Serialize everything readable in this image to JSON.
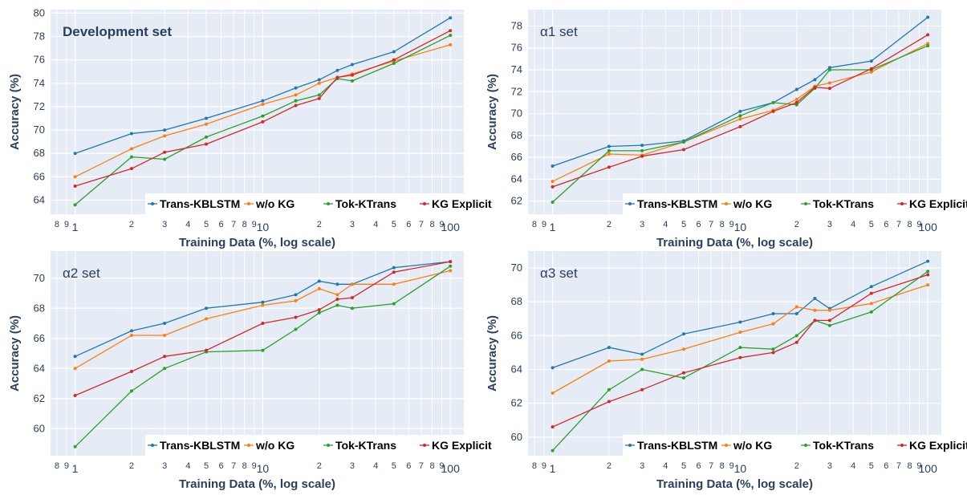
{
  "shared": {
    "xlabel": "Training Data (%, log scale)",
    "ylabel": "Accuracy (%)",
    "legend_placement": "bottom-right",
    "grid": true,
    "colors": {
      "plot_bg": "#e5ecf6",
      "grid": "#ffffff",
      "Trans-KBLSTM": "#1f77b4",
      "w/o KG": "#ff7f0e",
      "Tok-KTrans": "#2ca02c",
      "KG Explicit": "#d62728"
    },
    "x_tick_labels": [
      {
        "v": 0.8,
        "t": "8",
        "big": false
      },
      {
        "v": 0.9,
        "t": "9",
        "big": false
      },
      {
        "v": 1,
        "t": "1",
        "big": true
      },
      {
        "v": 2,
        "t": "2",
        "big": false
      },
      {
        "v": 3,
        "t": "3",
        "big": false
      },
      {
        "v": 4,
        "t": "4",
        "big": false
      },
      {
        "v": 5,
        "t": "5",
        "big": false
      },
      {
        "v": 6,
        "t": "6",
        "big": false
      },
      {
        "v": 7,
        "t": "7",
        "big": false
      },
      {
        "v": 8,
        "t": "8",
        "big": false
      },
      {
        "v": 9,
        "t": "9",
        "big": false
      },
      {
        "v": 10,
        "t": "10",
        "big": true
      },
      {
        "v": 20,
        "t": "2",
        "big": false
      },
      {
        "v": 30,
        "t": "3",
        "big": false
      },
      {
        "v": 40,
        "t": "4",
        "big": false
      },
      {
        "v": 50,
        "t": "5",
        "big": false
      },
      {
        "v": 60,
        "t": "6",
        "big": false
      },
      {
        "v": 70,
        "t": "7",
        "big": false
      },
      {
        "v": 80,
        "t": "8",
        "big": false
      },
      {
        "v": 90,
        "t": "9",
        "big": false
      },
      {
        "v": 100,
        "t": "100",
        "big": true
      }
    ]
  },
  "chart_data": [
    {
      "type": "line",
      "title": "Development set",
      "title_bold": true,
      "xlabel": "Training Data (%, log scale)",
      "ylabel": "Accuracy (%)",
      "x_scale": "log",
      "xlim": [
        0.74,
        118
      ],
      "ylim": [
        62.8,
        80.3
      ],
      "yticks": [
        64,
        66,
        68,
        70,
        72,
        74,
        76,
        78,
        80
      ],
      "x": [
        1,
        2,
        3,
        5,
        10,
        15,
        20,
        25,
        30,
        50,
        100
      ],
      "series": [
        {
          "name": "Trans-KBLSTM",
          "values": [
            68.0,
            69.7,
            70.0,
            71.0,
            72.5,
            73.6,
            74.3,
            75.1,
            75.6,
            76.7,
            79.6
          ]
        },
        {
          "name": "w/o KG",
          "values": [
            66.0,
            68.4,
            69.5,
            70.5,
            72.2,
            73.0,
            74.0,
            74.5,
            74.8,
            75.9,
            77.3
          ]
        },
        {
          "name": "Tok-KTrans",
          "values": [
            63.6,
            67.7,
            67.5,
            69.4,
            71.2,
            72.5,
            73.0,
            74.4,
            74.2,
            75.7,
            78.1
          ]
        },
        {
          "name": "KG Explicit",
          "values": [
            65.2,
            66.7,
            68.1,
            68.8,
            70.7,
            72.1,
            72.7,
            74.5,
            74.7,
            76.0,
            78.5
          ]
        }
      ]
    },
    {
      "type": "line",
      "title": "α1 set",
      "title_bold": false,
      "xlabel": "Training Data (%, log scale)",
      "ylabel": "Accuracy (%)",
      "x_scale": "log",
      "xlim": [
        0.74,
        118
      ],
      "ylim": [
        60.8,
        79.5
      ],
      "yticks": [
        62,
        64,
        66,
        68,
        70,
        72,
        74,
        76,
        78
      ],
      "x": [
        1,
        2,
        3,
        5,
        10,
        15,
        20,
        25,
        30,
        50,
        100
      ],
      "series": [
        {
          "name": "Trans-KBLSTM",
          "values": [
            65.2,
            67.0,
            67.1,
            67.5,
            70.2,
            71.0,
            72.2,
            73.1,
            74.2,
            74.8,
            78.8
          ]
        },
        {
          "name": "w/o KG",
          "values": [
            63.8,
            66.3,
            66.2,
            67.4,
            69.5,
            70.3,
            71.3,
            72.5,
            72.8,
            73.8,
            76.4
          ]
        },
        {
          "name": "Tok-KTrans",
          "values": [
            61.9,
            66.6,
            66.6,
            67.4,
            69.8,
            71.0,
            70.8,
            72.3,
            74.0,
            74.0,
            76.2
          ]
        },
        {
          "name": "KG Explicit",
          "values": [
            63.3,
            65.1,
            66.1,
            66.7,
            68.8,
            70.2,
            71.0,
            72.4,
            72.3,
            74.1,
            77.2
          ]
        }
      ]
    },
    {
      "type": "line",
      "title": "α2 set",
      "title_bold": false,
      "xlabel": "Training Data (%, log scale)",
      "ylabel": "Accuracy (%)",
      "x_scale": "log",
      "xlim": [
        0.74,
        118
      ],
      "ylim": [
        58.2,
        71.8
      ],
      "yticks": [
        60,
        62,
        64,
        66,
        68,
        70
      ],
      "x": [
        1,
        2,
        3,
        5,
        10,
        15,
        20,
        25,
        30,
        50,
        100
      ],
      "series": [
        {
          "name": "Trans-KBLSTM",
          "values": [
            64.8,
            66.5,
            67.0,
            68.0,
            68.4,
            68.9,
            69.8,
            69.6,
            69.6,
            70.7,
            71.1
          ]
        },
        {
          "name": "w/o KG",
          "values": [
            64.0,
            66.2,
            66.2,
            67.3,
            68.2,
            68.5,
            69.3,
            68.9,
            69.6,
            69.6,
            70.5
          ]
        },
        {
          "name": "Tok-KTrans",
          "values": [
            58.8,
            62.5,
            64.0,
            65.1,
            65.2,
            66.6,
            67.7,
            68.2,
            68.0,
            68.3,
            70.8
          ]
        },
        {
          "name": "KG Explicit",
          "values": [
            62.2,
            63.8,
            64.8,
            65.2,
            67.0,
            67.4,
            67.9,
            68.6,
            68.7,
            70.4,
            71.1
          ]
        }
      ]
    },
    {
      "type": "line",
      "title": "α3 set",
      "title_bold": false,
      "xlabel": "Training Data (%, log scale)",
      "ylabel": "Accuracy (%)",
      "x_scale": "log",
      "xlim": [
        0.74,
        118
      ],
      "ylim": [
        58.9,
        71.0
      ],
      "yticks": [
        60,
        62,
        64,
        66,
        68,
        70
      ],
      "x": [
        1,
        2,
        3,
        5,
        10,
        15,
        20,
        25,
        30,
        50,
        100
      ],
      "series": [
        {
          "name": "Trans-KBLSTM",
          "values": [
            64.1,
            65.3,
            64.9,
            66.1,
            66.8,
            67.3,
            67.3,
            68.2,
            67.6,
            68.9,
            70.4
          ]
        },
        {
          "name": "w/o KG",
          "values": [
            62.6,
            64.5,
            64.6,
            65.2,
            66.2,
            66.7,
            67.7,
            67.5,
            67.5,
            67.9,
            69.0
          ]
        },
        {
          "name": "Tok-KTrans",
          "values": [
            59.2,
            62.8,
            64.0,
            63.5,
            65.3,
            65.2,
            66.0,
            66.9,
            66.6,
            67.4,
            69.8
          ]
        },
        {
          "name": "KG Explicit",
          "values": [
            60.6,
            62.1,
            62.8,
            63.8,
            64.7,
            65.0,
            65.6,
            66.9,
            66.9,
            68.5,
            69.6
          ]
        }
      ]
    }
  ]
}
